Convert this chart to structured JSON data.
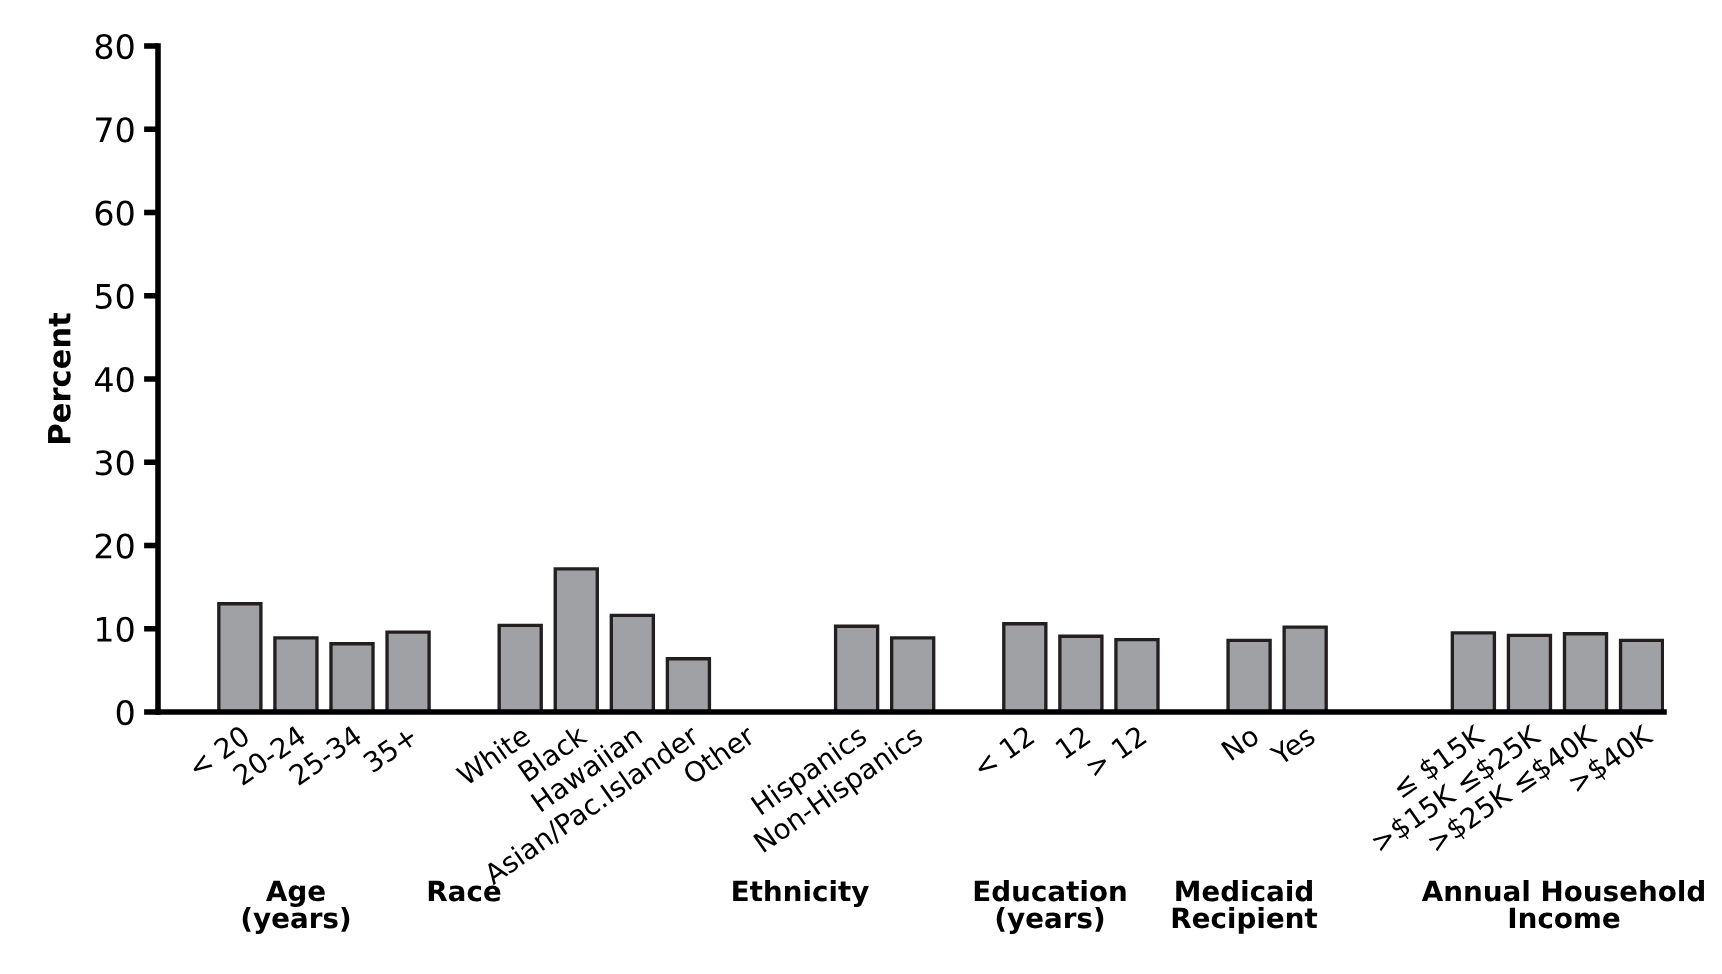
{
  "chart_data": {
    "type": "bar",
    "ylabel": "Percent",
    "categories": [
      "< 20",
      "20-24",
      "25-34",
      "35+",
      null,
      "White",
      "Black",
      "Hawaiian",
      "Asian/Pac.Islander",
      "Other",
      null,
      "Hispanics",
      "Non-Hispanics",
      null,
      "< 12",
      "12",
      "> 12",
      null,
      "No",
      "Yes",
      null,
      null,
      "≤ $15K",
      ">$15K ≤$25K",
      ">$25K ≤$40K",
      ">$40K"
    ],
    "values": [
      13.0,
      8.9,
      8.2,
      9.6,
      null,
      10.4,
      17.2,
      11.6,
      6.4,
      null,
      null,
      10.3,
      8.9,
      null,
      10.6,
      9.1,
      8.7,
      null,
      8.6,
      10.2,
      null,
      null,
      9.5,
      9.2,
      9.4,
      8.6
    ],
    "color": "#a0a1a5",
    "ylim": [
      0,
      80
    ],
    "yticks": [
      0,
      10,
      20,
      30,
      40,
      50,
      60,
      70,
      80
    ],
    "grid": false,
    "legend": false,
    "annotations": [
      "Age\n(years)",
      "Race",
      "Ethnicity",
      "Education\n(years)",
      "Medicaid\nRecipient",
      "Annual Household\nIncome"
    ]
  }
}
